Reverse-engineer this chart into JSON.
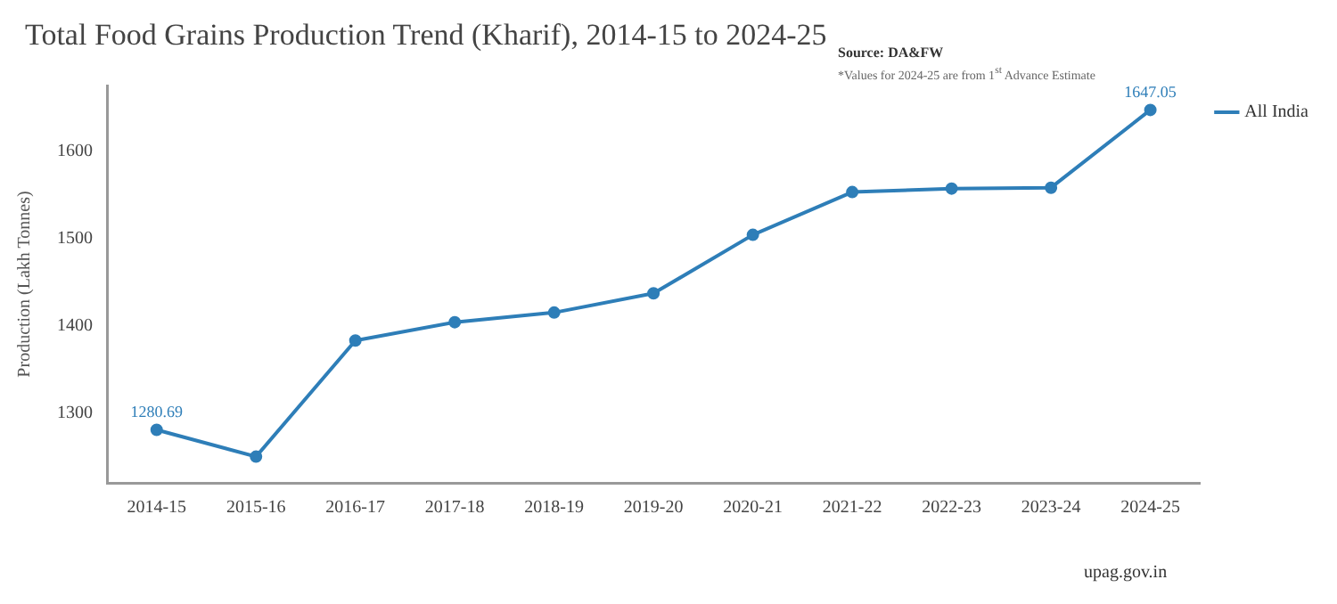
{
  "chart_data": {
    "type": "line",
    "title": "Total Food Grains Production Trend (Kharif), 2014-15 to 2024-25",
    "ylabel": "Production (Lakh Tonnes)",
    "annotations": [
      "Source: DA&FW",
      "*Values for 2024-25 are from 1$^{st}$ Advance Estimate",
      "upag.gov.in"
    ],
    "categories": [
      "2014-15",
      "2015-16",
      "2016-17",
      "2017-18",
      "2018-19",
      "2019-20",
      "2020-21",
      "2021-22",
      "2022-23",
      "2023-24",
      "2024-25"
    ],
    "series": [
      {
        "name": "All India",
        "color": "#2e7eb8",
        "values": [
          1280.69,
          1250,
          1383,
          1404,
          1415,
          1437,
          1504,
          1553,
          1557,
          1558,
          1647.05
        ],
        "value_labels": [
          "1280.69",
          null,
          null,
          null,
          null,
          null,
          null,
          null,
          null,
          null,
          "1647.05"
        ]
      }
    ],
    "ylim": [
      1220,
      1675
    ],
    "yticks": [
      1300,
      1400,
      1500,
      1600
    ],
    "grid": false,
    "legend": "top right",
    "marker": "circle",
    "line_style": "solid"
  }
}
